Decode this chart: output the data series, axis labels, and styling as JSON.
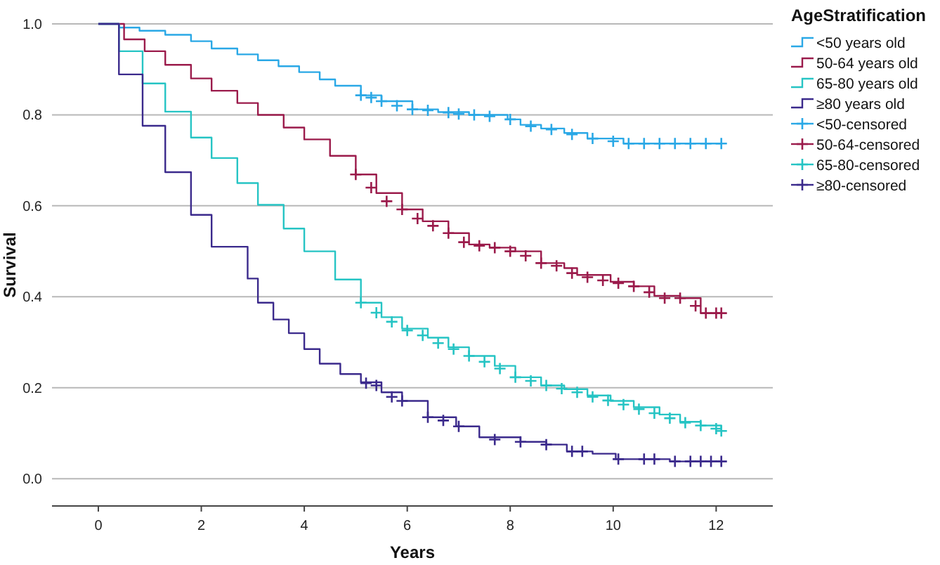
{
  "chart_data": {
    "type": "step",
    "xlabel": "Years",
    "ylabel": "Survival",
    "legend_title": "AgeStratification",
    "legend": "right",
    "grid": "y",
    "xlim": [
      -0.9,
      13.1
    ],
    "ylim": [
      -0.06,
      1
    ],
    "xticks": [
      0,
      2,
      4,
      6,
      8,
      10,
      12
    ],
    "yticks": [
      {
        "value": 0,
        "label": "0.0"
      },
      {
        "value": 0.2,
        "label": "0.2"
      },
      {
        "value": 0.4,
        "label": "0.4"
      },
      {
        "value": 0.6,
        "label": "0.6"
      },
      {
        "value": 0.8,
        "label": "0.8"
      },
      {
        "value": 1,
        "label": "1.0"
      }
    ],
    "series": [
      {
        "name": "<50 years old",
        "marker": "none",
        "color": "#2aa8e6",
        "x": [
          0,
          0.4,
          0.8,
          1.3,
          1.8,
          2.2,
          2.7,
          3.1,
          3.5,
          3.9,
          4.3,
          4.6,
          5.1,
          5.5,
          6.1,
          6.6,
          7.2,
          7.95,
          8.2,
          8.6,
          9.05,
          9.5,
          10.2,
          12.1
        ],
        "values": [
          1,
          0.992,
          0.985,
          0.976,
          0.962,
          0.946,
          0.933,
          0.92,
          0.907,
          0.894,
          0.878,
          0.864,
          0.843,
          0.83,
          0.812,
          0.806,
          0.8,
          0.79,
          0.778,
          0.77,
          0.76,
          0.748,
          0.737,
          0.737
        ]
      },
      {
        "name": "50-64 years old",
        "marker": "none",
        "color": "#9b1b4b",
        "x": [
          0,
          0.5,
          0.9,
          1.3,
          1.8,
          2.2,
          2.7,
          3.1,
          3.6,
          4.0,
          4.5,
          5.0,
          5.4,
          5.9,
          6.3,
          6.8,
          7.2,
          7.6,
          8.1,
          8.6,
          9.05,
          9.3,
          9.95,
          10.4,
          10.8,
          11.3,
          11.7,
          12.1
        ],
        "values": [
          1,
          0.966,
          0.94,
          0.91,
          0.88,
          0.853,
          0.826,
          0.8,
          0.772,
          0.746,
          0.71,
          0.669,
          0.628,
          0.592,
          0.566,
          0.54,
          0.515,
          0.508,
          0.5,
          0.474,
          0.463,
          0.448,
          0.433,
          0.423,
          0.402,
          0.397,
          0.364,
          0.364
        ]
      },
      {
        "name": "65-80 years old",
        "marker": "none",
        "color": "#26c4c4",
        "x": [
          0,
          0.4,
          0.86,
          1.3,
          1.8,
          2.2,
          2.7,
          3.1,
          3.6,
          4.0,
          4.6,
          5.1,
          5.5,
          5.9,
          6.4,
          6.8,
          7.2,
          7.7,
          8.1,
          8.6,
          9.05,
          9.5,
          9.95,
          10.4,
          10.9,
          11.3,
          11.7,
          12.1
        ],
        "values": [
          1,
          0.94,
          0.869,
          0.807,
          0.75,
          0.705,
          0.65,
          0.602,
          0.55,
          0.5,
          0.438,
          0.387,
          0.355,
          0.33,
          0.31,
          0.289,
          0.27,
          0.248,
          0.223,
          0.205,
          0.197,
          0.183,
          0.171,
          0.157,
          0.141,
          0.125,
          0.117,
          0.105
        ]
      },
      {
        "name": "≥80 years old",
        "marker": "none",
        "color": "#3b2a8c",
        "x": [
          0,
          0.4,
          0.86,
          1.3,
          1.8,
          2.2,
          2.9,
          3.1,
          3.4,
          3.7,
          4.0,
          4.3,
          4.7,
          5.1,
          5.5,
          5.9,
          6.4,
          6.95,
          7.4,
          8.2,
          8.7,
          9.1,
          9.6,
          10.05,
          11.1,
          12.1
        ],
        "values": [
          1,
          0.889,
          0.776,
          0.674,
          0.58,
          0.51,
          0.44,
          0.387,
          0.35,
          0.32,
          0.285,
          0.253,
          0.23,
          0.212,
          0.19,
          0.171,
          0.135,
          0.115,
          0.091,
          0.081,
          0.075,
          0.06,
          0.055,
          0.043,
          0.038,
          0.038
        ]
      },
      {
        "name": "<50-censored",
        "type": "scatter",
        "marker": "cross",
        "color": "#2aa8e6",
        "x": [
          5.1,
          5.3,
          5.5,
          5.8,
          6.1,
          6.4,
          6.8,
          7.0,
          7.3,
          7.6,
          8.0,
          8.4,
          8.8,
          9.2,
          9.6,
          10.0,
          10.3,
          10.6,
          10.9,
          11.2,
          11.5,
          11.8,
          12.1
        ],
        "values": [
          0.843,
          0.838,
          0.83,
          0.82,
          0.812,
          0.81,
          0.805,
          0.802,
          0.8,
          0.797,
          0.79,
          0.775,
          0.768,
          0.757,
          0.748,
          0.742,
          0.737,
          0.737,
          0.737,
          0.737,
          0.737,
          0.737,
          0.737
        ]
      },
      {
        "name": "50-64-censored",
        "type": "scatter",
        "marker": "cross",
        "color": "#9b1b4b",
        "x": [
          5.0,
          5.3,
          5.6,
          5.9,
          6.2,
          6.5,
          6.8,
          7.1,
          7.4,
          7.7,
          8.0,
          8.3,
          8.6,
          8.9,
          9.2,
          9.5,
          9.8,
          10.1,
          10.4,
          10.7,
          11.0,
          11.3,
          11.6,
          11.8,
          12.0,
          12.1
        ],
        "values": [
          0.669,
          0.64,
          0.61,
          0.592,
          0.572,
          0.556,
          0.54,
          0.52,
          0.512,
          0.508,
          0.5,
          0.49,
          0.474,
          0.468,
          0.452,
          0.443,
          0.436,
          0.43,
          0.423,
          0.41,
          0.397,
          0.397,
          0.38,
          0.364,
          0.364,
          0.364
        ]
      },
      {
        "name": "65-80-censored",
        "type": "scatter",
        "marker": "cross",
        "color": "#26c4c4",
        "x": [
          5.1,
          5.4,
          5.7,
          6.0,
          6.3,
          6.6,
          6.9,
          7.2,
          7.5,
          7.8,
          8.1,
          8.4,
          8.7,
          9.0,
          9.3,
          9.6,
          9.9,
          10.2,
          10.5,
          10.8,
          11.1,
          11.4,
          11.7,
          12.0,
          12.1
        ],
        "values": [
          0.387,
          0.365,
          0.345,
          0.326,
          0.315,
          0.298,
          0.285,
          0.27,
          0.257,
          0.242,
          0.223,
          0.215,
          0.205,
          0.198,
          0.19,
          0.18,
          0.172,
          0.163,
          0.153,
          0.144,
          0.133,
          0.123,
          0.117,
          0.11,
          0.105
        ]
      },
      {
        "name": "≥80-censored",
        "type": "scatter",
        "marker": "cross",
        "color": "#3b2a8c",
        "x": [
          5.2,
          5.4,
          5.7,
          5.9,
          6.4,
          6.7,
          7.0,
          7.7,
          8.2,
          8.7,
          9.2,
          9.4,
          10.1,
          10.6,
          10.8,
          11.2,
          11.5,
          11.7,
          11.9,
          12.1
        ],
        "values": [
          0.21,
          0.205,
          0.18,
          0.171,
          0.135,
          0.128,
          0.115,
          0.086,
          0.081,
          0.075,
          0.06,
          0.06,
          0.043,
          0.043,
          0.043,
          0.038,
          0.038,
          0.038,
          0.038,
          0.038
        ]
      }
    ]
  }
}
